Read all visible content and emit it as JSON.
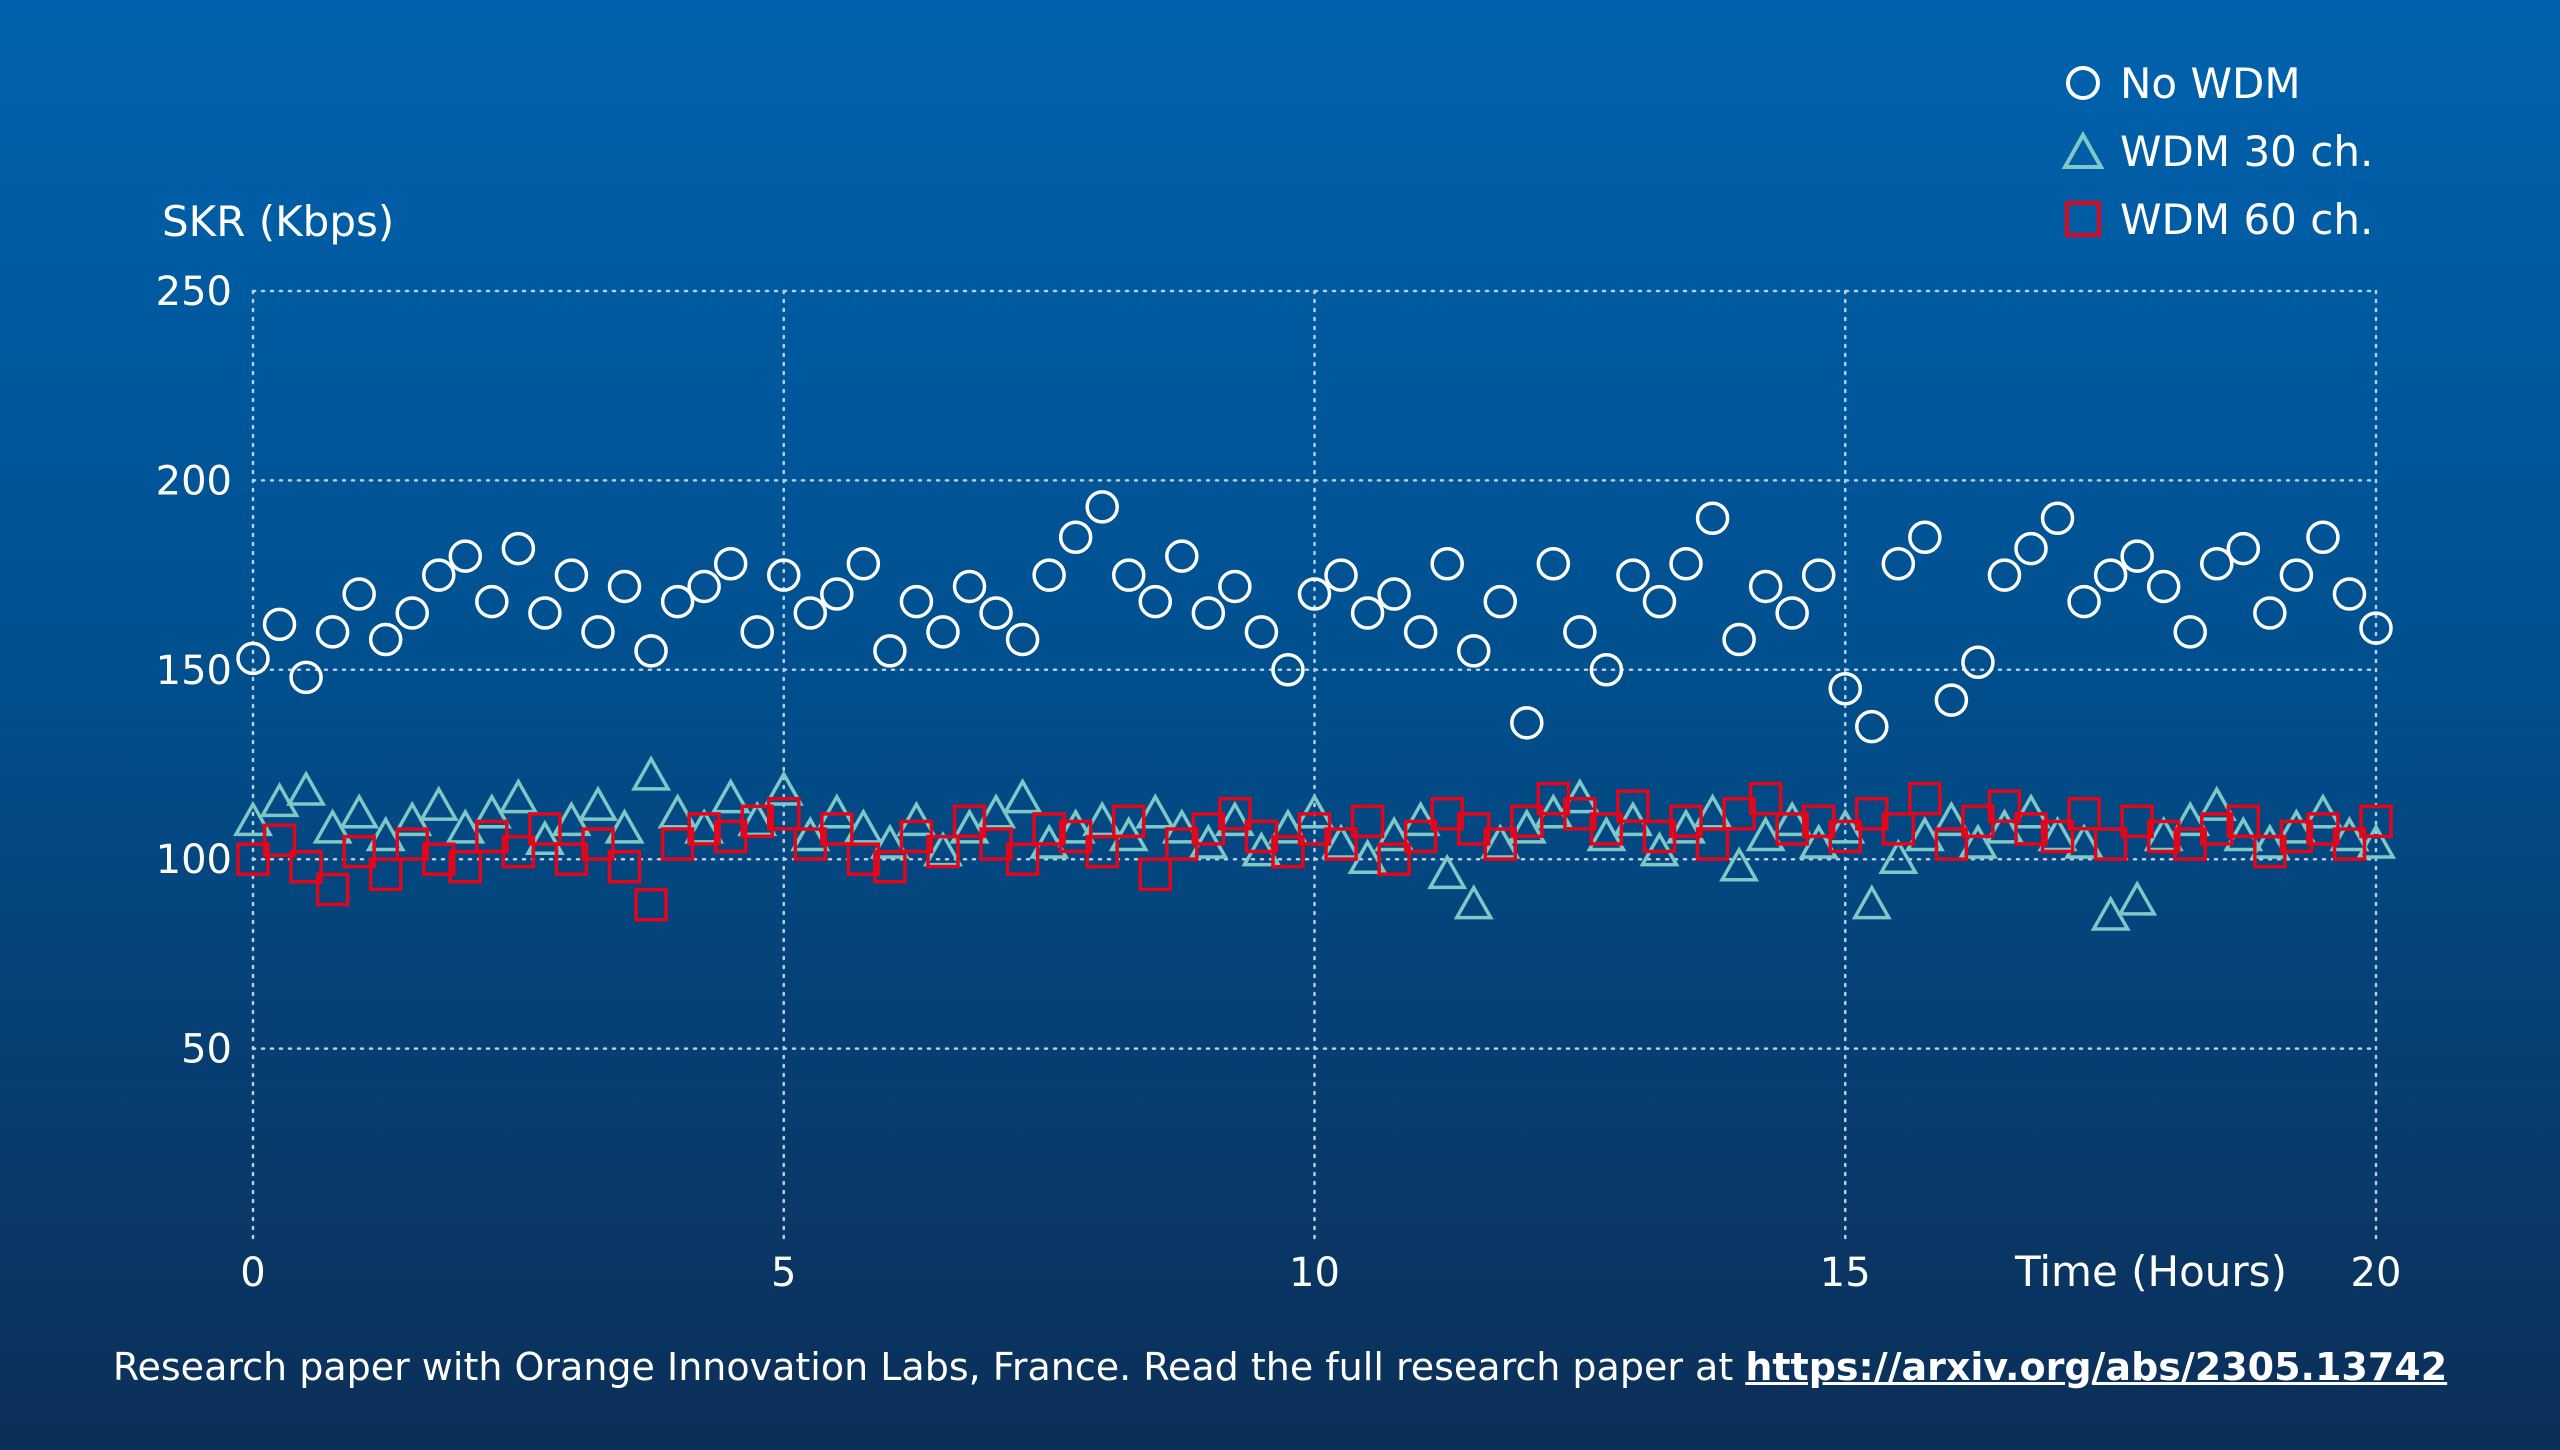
{
  "chart_data": {
    "type": "scatter",
    "ylabel": "SKR (Kbps)",
    "xlabel": "Time (Hours)",
    "xlim": [
      0,
      20
    ],
    "ylim": [
      0,
      250
    ],
    "xticks": [
      0,
      5,
      10,
      15,
      20
    ],
    "yticks": [
      50,
      100,
      150,
      200,
      250
    ],
    "grid": true,
    "legend_position": "top-right",
    "x": [
      0,
      0.25,
      0.5,
      0.75,
      1,
      1.25,
      1.5,
      1.75,
      2,
      2.25,
      2.5,
      2.75,
      3,
      3.25,
      3.5,
      3.75,
      4,
      4.25,
      4.5,
      4.75,
      5,
      5.25,
      5.5,
      5.75,
      6,
      6.25,
      6.5,
      6.75,
      7,
      7.25,
      7.5,
      7.75,
      8,
      8.25,
      8.5,
      8.75,
      9,
      9.25,
      9.5,
      9.75,
      10,
      10.25,
      10.5,
      10.75,
      11,
      11.25,
      11.5,
      11.75,
      12,
      12.25,
      12.5,
      12.75,
      13,
      13.25,
      13.5,
      13.75,
      14,
      14.25,
      14.5,
      14.75,
      15,
      15.25,
      15.5,
      15.75,
      16,
      16.25,
      16.5,
      16.75,
      17,
      17.25,
      17.5,
      17.75,
      18,
      18.25,
      18.5,
      18.75,
      19,
      19.25,
      19.5,
      19.75,
      20
    ],
    "series": [
      {
        "name": "No WDM",
        "marker": "circle",
        "color": "#ffffff",
        "values": [
          153,
          162,
          148,
          160,
          170,
          158,
          165,
          175,
          180,
          168,
          182,
          165,
          175,
          160,
          172,
          155,
          168,
          172,
          178,
          160,
          175,
          165,
          170,
          178,
          155,
          168,
          160,
          172,
          165,
          158,
          175,
          185,
          193,
          175,
          168,
          180,
          165,
          172,
          160,
          150,
          170,
          175,
          165,
          170,
          160,
          178,
          155,
          168,
          136,
          178,
          160,
          150,
          175,
          168,
          178,
          190,
          158,
          172,
          165,
          175,
          145,
          135,
          178,
          185,
          142,
          152,
          175,
          182,
          190,
          168,
          175,
          180,
          172,
          160,
          178,
          182,
          165,
          175,
          185,
          170,
          161
        ]
      },
      {
        "name": "WDM 30 ch.",
        "marker": "triangle",
        "color": "#7ec8c8",
        "values": [
          110,
          115,
          118,
          108,
          112,
          106,
          110,
          114,
          108,
          112,
          116,
          105,
          110,
          114,
          108,
          122,
          112,
          108,
          116,
          110,
          118,
          106,
          112,
          108,
          104,
          110,
          102,
          108,
          112,
          116,
          104,
          108,
          110,
          106,
          112,
          108,
          104,
          110,
          102,
          108,
          112,
          104,
          100,
          106,
          110,
          96,
          88,
          104,
          108,
          112,
          116,
          106,
          110,
          102,
          108,
          112,
          98,
          106,
          110,
          104,
          108,
          88,
          100,
          106,
          110,
          104,
          108,
          112,
          106,
          104,
          85,
          89,
          106,
          110,
          114,
          106,
          104,
          108,
          112,
          106,
          104
        ]
      },
      {
        "name": "WDM 60 ch.",
        "marker": "square",
        "color": "#e3061b",
        "values": [
          100,
          105,
          98,
          92,
          102,
          96,
          104,
          100,
          98,
          106,
          102,
          108,
          100,
          104,
          98,
          88,
          104,
          108,
          106,
          110,
          112,
          104,
          108,
          100,
          98,
          106,
          102,
          110,
          104,
          100,
          108,
          106,
          102,
          110,
          96,
          104,
          108,
          112,
          106,
          102,
          108,
          104,
          110,
          100,
          106,
          112,
          108,
          104,
          110,
          116,
          112,
          108,
          114,
          106,
          110,
          104,
          112,
          116,
          108,
          110,
          106,
          112,
          108,
          116,
          104,
          110,
          114,
          108,
          106,
          112,
          104,
          110,
          106,
          104,
          108,
          110,
          102,
          106,
          108,
          104,
          110
        ]
      }
    ]
  },
  "footer": {
    "text": "Research paper with Orange Innovation Labs, France. Read the full research paper at ",
    "link": "https://arxiv.org/abs/2305.13742"
  }
}
